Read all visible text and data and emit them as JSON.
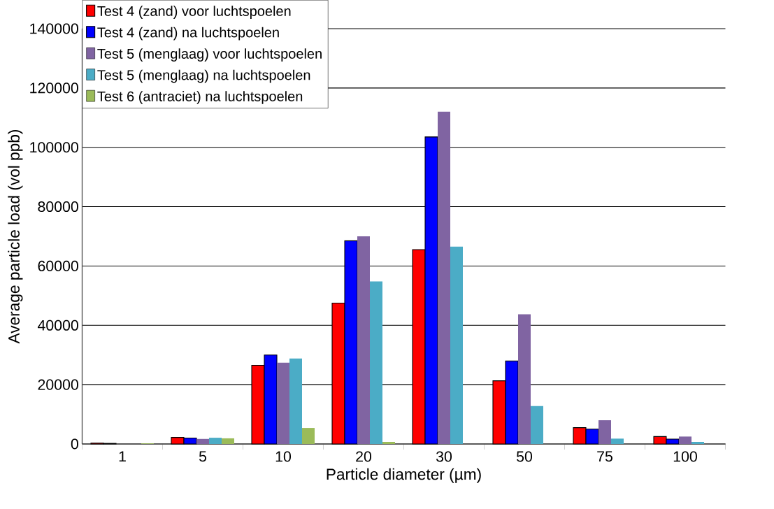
{
  "chart_data": {
    "type": "bar",
    "xlabel": "Particle diameter (µm)",
    "ylabel": "Average particle load (vol ppb)",
    "categories": [
      "1",
      "5",
      "10",
      "20",
      "30",
      "50",
      "75",
      "100"
    ],
    "series": [
      {
        "name": "Test 4 (zand) voor luchtspoelen",
        "color": "#ff0000",
        "values": [
          300,
          2200,
          26500,
          47500,
          65500,
          21300,
          5500,
          2500
        ]
      },
      {
        "name": "Test 4 (zand) na luchtspoelen",
        "color": "#0000ff",
        "values": [
          200,
          2000,
          30000,
          68500,
          103500,
          28000,
          5000,
          1650
        ]
      },
      {
        "name": "Test 5 (menglaag) voor luchtspoelen",
        "color": "#8064a2",
        "values": [
          0,
          1700,
          27400,
          70000,
          112000,
          43700,
          8000,
          2500
        ]
      },
      {
        "name": "Test 5 (menglaag) na luchtspoelen",
        "color": "#4bacc6",
        "values": [
          0,
          2100,
          28800,
          54800,
          66500,
          12800,
          1800,
          700
        ]
      },
      {
        "name": "Test 6 (antraciet) na luchtspoelen",
        "color": "#9bbb59",
        "values": [
          200,
          1900,
          5400,
          700,
          0,
          0,
          0,
          0
        ]
      }
    ],
    "ylim": [
      0,
      140000
    ],
    "yticks": [
      0,
      20000,
      40000,
      60000,
      80000,
      100000,
      120000,
      140000
    ],
    "grid": "y",
    "legend": "top left"
  }
}
